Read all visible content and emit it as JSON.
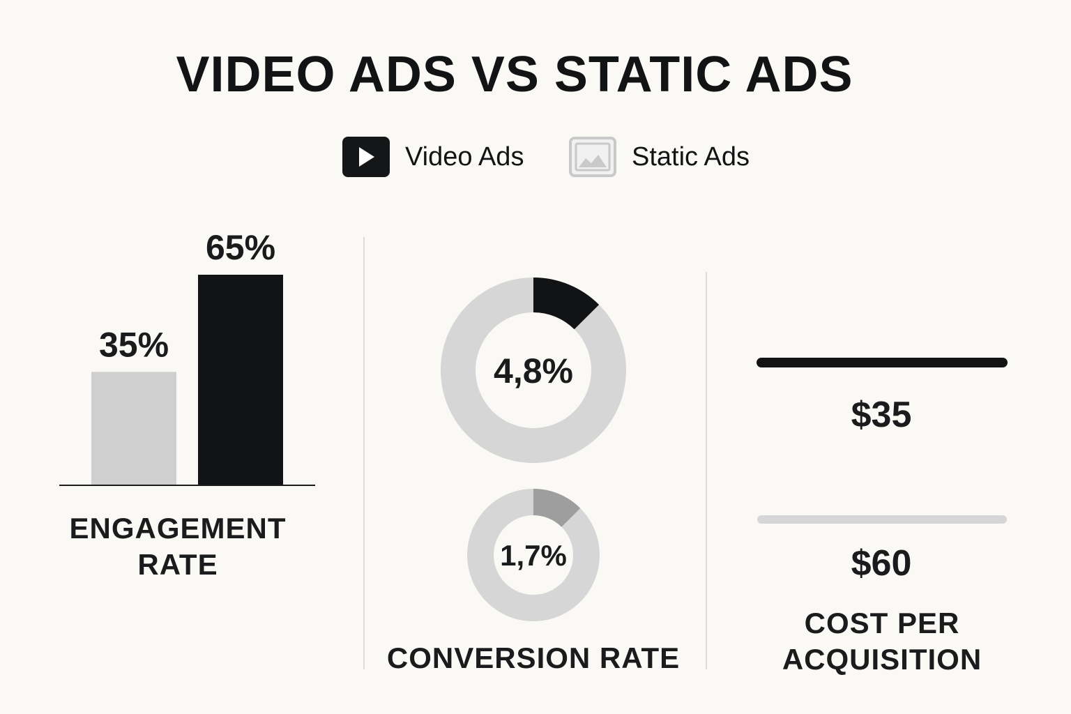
{
  "title": "VIDEO ADS VS STATIC ADS",
  "legend": {
    "video": {
      "label": "Video Ads",
      "icon": "play-icon",
      "color": "#151617"
    },
    "static": {
      "label": "Static Ads",
      "icon": "image-icon",
      "color": "#CFCFCF"
    }
  },
  "chart_data": [
    {
      "type": "bar",
      "categories": [
        "Static Ads",
        "Video Ads"
      ],
      "values": [
        35,
        65
      ],
      "value_labels": [
        "35%",
        "65%"
      ],
      "colors": [
        "#CFCFCF",
        "#121314"
      ],
      "title": "ENGAGEMENT RATE",
      "ylim": [
        0,
        65
      ]
    },
    {
      "type": "pie",
      "title": "CONVERSION RATE",
      "series": [
        {
          "name": "Video Ads",
          "value": 4.8,
          "label": "4,8%",
          "color": "#121314",
          "track": "#D6D6D6"
        },
        {
          "name": "Static Ads",
          "value": 1.7,
          "label": "1,7%",
          "color": "#9E9E9E",
          "track": "#D6D6D6"
        }
      ]
    },
    {
      "type": "bar",
      "orientation": "horizontal",
      "title": "COST PER ACQUISITION",
      "series": [
        {
          "name": "Video Ads",
          "value": 35,
          "label": "$35",
          "color": "#121314"
        },
        {
          "name": "Static Ads",
          "value": 60,
          "label": "$60",
          "color": "#D6D6D6"
        }
      ]
    }
  ]
}
